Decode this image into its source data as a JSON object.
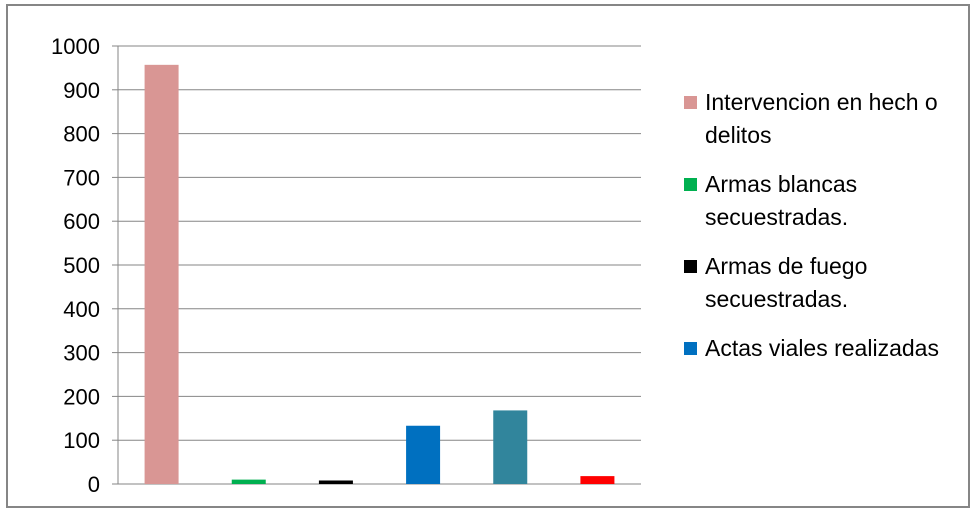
{
  "chart_data": {
    "type": "bar",
    "title": "",
    "xlabel": "",
    "ylabel": "",
    "ylim": [
      0,
      1000
    ],
    "yticks": [
      0,
      100,
      200,
      300,
      400,
      500,
      600,
      700,
      800,
      900,
      1000
    ],
    "grid": true,
    "legend_position": "right",
    "bars": [
      {
        "value": 957,
        "color": "#d99694"
      },
      {
        "value": 10,
        "color": "#00b050"
      },
      {
        "value": 8,
        "color": "#000000"
      },
      {
        "value": 133,
        "color": "#0070c0"
      },
      {
        "value": 168,
        "color": "#31859c"
      },
      {
        "value": 18,
        "color": "#ff0000"
      }
    ],
    "legend": [
      {
        "label": "Intervencion en hech o delitos",
        "color": "#d99694"
      },
      {
        "label": "Armas blancas secuestradas.",
        "color": "#00b050"
      },
      {
        "label": "Armas de fuego secuestradas.",
        "color": "#000000"
      },
      {
        "label": "Actas viales realizadas",
        "color": "#0070c0"
      }
    ]
  }
}
